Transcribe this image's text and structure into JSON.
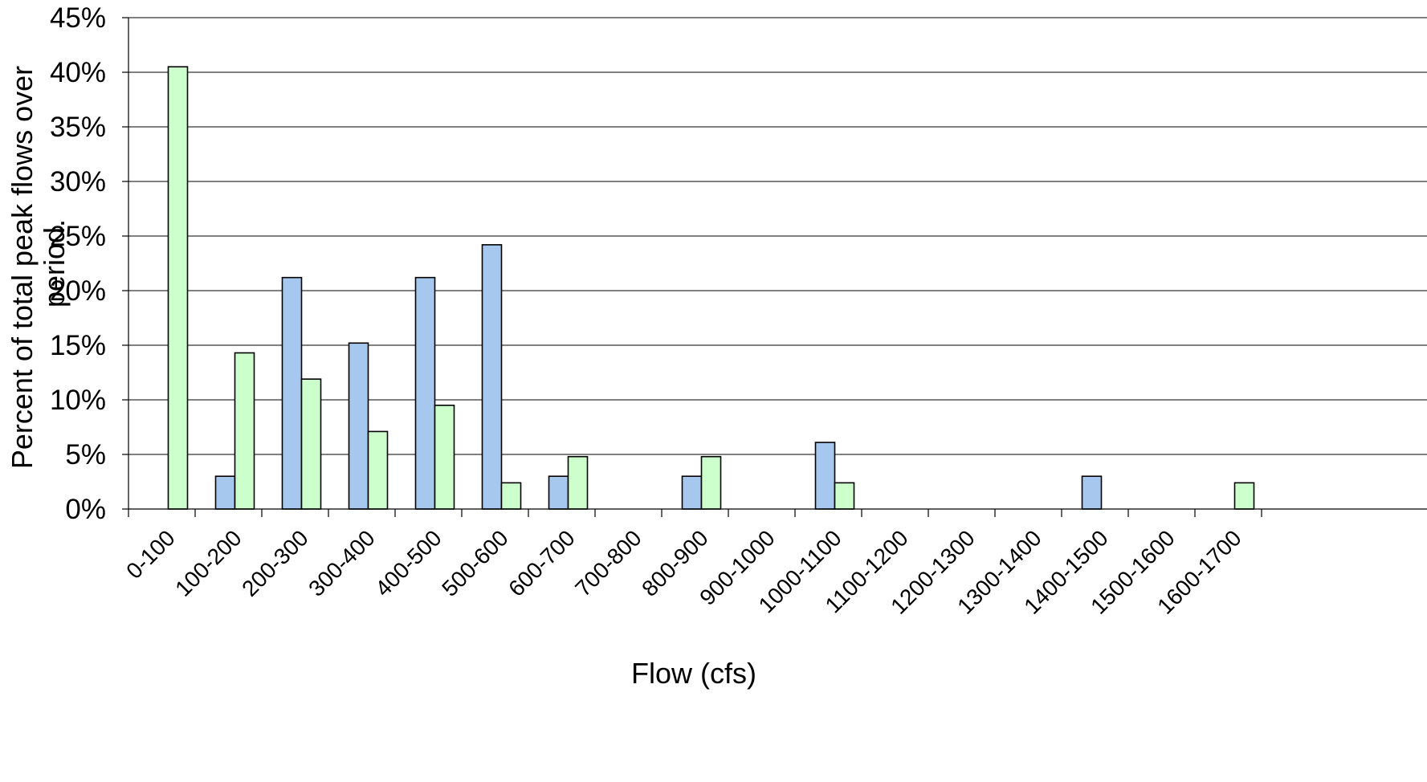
{
  "chart_data": {
    "type": "bar",
    "title": "",
    "xlabel": "Flow (cfs)",
    "ylabel": "Percent of total peak flows over period",
    "ylabel_lines": [
      "Percent of total peak flows over",
      "period."
    ],
    "ylim": [
      0,
      45
    ],
    "yticks": [
      "0%",
      "5%",
      "10%",
      "15%",
      "20%",
      "25%",
      "30%",
      "35%",
      "40%",
      "45%"
    ],
    "grid": true,
    "legend": "none",
    "categories": [
      "0-100",
      "100-200",
      "200-300",
      "300-400",
      "400-500",
      "500-600",
      "600-700",
      "700-800",
      "800-900",
      "900-1000",
      "1000-1100",
      "1100-1200",
      "1200-1300",
      "1300-1400",
      "1400-1500",
      "1500-1600",
      "1600-1700"
    ],
    "series": [
      {
        "color": "#a6c8ee",
        "values": [
          0,
          3,
          21.2,
          15.2,
          21.2,
          24.2,
          3,
          0,
          3,
          0,
          6.1,
          0,
          0,
          0,
          3,
          0,
          0
        ]
      },
      {
        "color": "#ccffcc",
        "values": [
          40.5,
          14.3,
          11.9,
          7.1,
          9.5,
          2.4,
          4.8,
          0,
          4.8,
          0,
          2.4,
          0,
          0,
          0,
          0,
          0,
          2.4
        ]
      }
    ]
  }
}
